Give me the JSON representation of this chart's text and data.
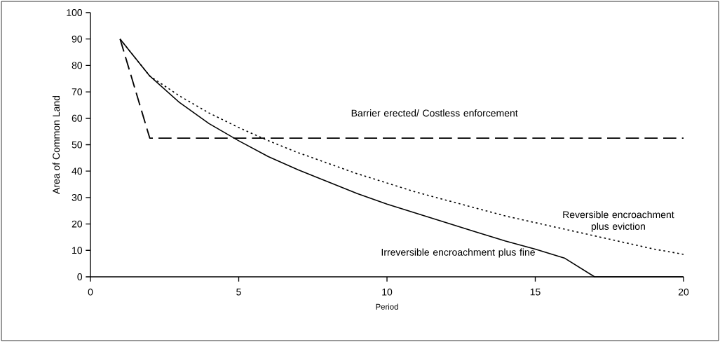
{
  "chart_data": {
    "type": "line",
    "xlabel": "Period",
    "ylabel": "Area of Common Land",
    "x": [
      1,
      2,
      3,
      4,
      5,
      6,
      7,
      8,
      9,
      10,
      11,
      12,
      13,
      14,
      15,
      16,
      17,
      18,
      19,
      20
    ],
    "series": [
      {
        "color": "#000000",
        "line_style": "solid",
        "values": [
          90,
          76,
          66,
          58,
          51.5,
          45.5,
          40.5,
          36,
          31.5,
          27.5,
          24,
          20.5,
          17,
          13.5,
          10.5,
          7,
          0,
          0,
          0,
          0
        ]
      },
      {
        "color": "#000000",
        "line_style": "dotted",
        "values": [
          90,
          76,
          68.5,
          62,
          56.5,
          51.5,
          47,
          43,
          39,
          35.5,
          32,
          29,
          26,
          23,
          20.5,
          18,
          15.5,
          13,
          10.5,
          8.5
        ]
      },
      {
        "color": "#000000",
        "line_style": "dashed",
        "values": [
          90,
          52.5,
          52.5,
          52.5,
          52.5,
          52.5,
          52.5,
          52.5,
          52.5,
          52.5,
          52.5,
          52.5,
          52.5,
          52.5,
          52.5,
          52.5,
          52.5,
          52.5,
          52.5,
          52.5
        ]
      }
    ],
    "xlim": [
      0,
      20
    ],
    "ylim": [
      0,
      100
    ],
    "xticks": [
      0,
      5,
      10,
      15,
      20
    ],
    "yticks": [
      0,
      10,
      20,
      30,
      40,
      50,
      60,
      70,
      80,
      90,
      100
    ],
    "grid": false,
    "marker": "none",
    "annotations": [
      "Barrier erected/ Costless enforcement",
      "Reversible encroachment plus eviction",
      "Irreversible encroachment plus fine"
    ]
  }
}
